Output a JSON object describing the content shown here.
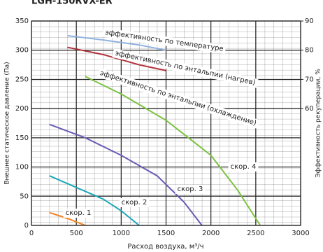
{
  "chart_data": {
    "type": "line",
    "title": "LGH-150RVX-ER",
    "x_label": "Расход воздуха, м³/ч",
    "y_label": "Внешнее статическое давление (Па)",
    "y2_label": "Эффективность рекуперации, %",
    "xlim": [
      0,
      3000
    ],
    "xticks": [
      0,
      500,
      1000,
      1500,
      2000,
      2500,
      3000
    ],
    "ylim": [
      0,
      350
    ],
    "yticks": [
      0,
      50,
      100,
      150,
      200,
      250,
      300,
      350
    ],
    "y2lim": [
      20,
      90
    ],
    "y2ticks": [
      60,
      70,
      80,
      90
    ],
    "grid": true,
    "annotations": [
      "эффективность по энтальпии (охлаждение)"
    ],
    "series": [
      {
        "name": "скор. 1",
        "color": "#f58220",
        "x": [
          200,
          400,
          600
        ],
        "values": [
          22,
          12,
          0
        ]
      },
      {
        "name": "скор. 2",
        "color": "#1aa6b7",
        "x": [
          200,
          500,
          800,
          1000,
          1200
        ],
        "values": [
          85,
          65,
          45,
          25,
          0
        ]
      },
      {
        "name": "скор. 3",
        "color": "#6a5bb5",
        "x": [
          200,
          600,
          1000,
          1400,
          1700,
          1900
        ],
        "values": [
          173,
          150,
          120,
          85,
          40,
          0
        ]
      },
      {
        "name": "скор. 4",
        "color": "#7dc242",
        "x": [
          600,
          1000,
          1500,
          2000,
          2300,
          2550
        ],
        "values": [
          255,
          225,
          180,
          120,
          60,
          0
        ]
      },
      {
        "name": "эффективность по температуре",
        "color": "#8fb3e0",
        "axis": "y2",
        "x": [
          400,
          800,
          1200,
          1500
        ],
        "values": [
          85,
          83.5,
          81.8,
          80
        ]
      },
      {
        "name": "эффективность по энтальпии (нагрев)",
        "color": "#b0303a",
        "axis": "y2",
        "x": [
          400,
          800,
          1200,
          1500
        ],
        "values": [
          81,
          78.5,
          75,
          73
        ]
      }
    ]
  }
}
